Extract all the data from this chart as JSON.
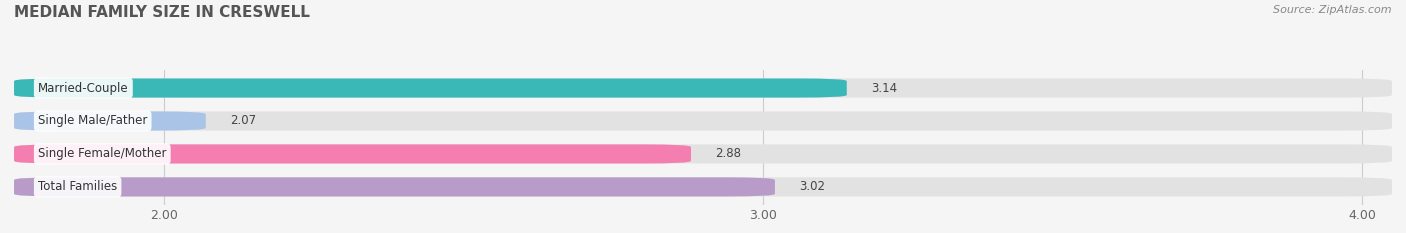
{
  "title": "MEDIAN FAMILY SIZE IN CRESWELL",
  "source": "Source: ZipAtlas.com",
  "categories": [
    "Married-Couple",
    "Single Male/Father",
    "Single Female/Mother",
    "Total Families"
  ],
  "values": [
    3.14,
    2.07,
    2.88,
    3.02
  ],
  "colors": [
    "#3ab8b8",
    "#aac4e8",
    "#f47eb0",
    "#b89bc8"
  ],
  "xlim_left": 1.75,
  "xlim_right": 4.05,
  "xstart": 1.75,
  "xticks": [
    2.0,
    3.0,
    4.0
  ],
  "bar_height": 0.58,
  "background_color": "#f5f5f5",
  "bar_bg_color": "#e2e2e2",
  "label_fontsize": 8.5,
  "value_fontsize": 8.5,
  "title_fontsize": 11,
  "source_fontsize": 8
}
